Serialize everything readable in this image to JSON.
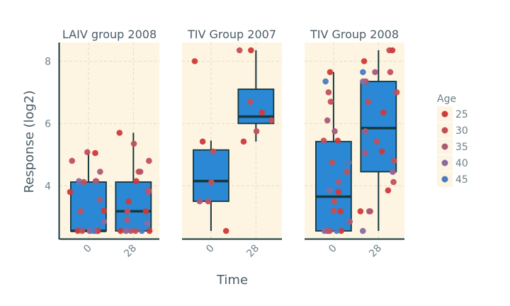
{
  "chart_data": {
    "type": "box",
    "xlabel": "Time",
    "ylabel": "Response (log2)",
    "ylim": [
      2.3,
      8.6
    ],
    "y_ticks": [
      4,
      6,
      8
    ],
    "x_categories": [
      "0",
      "28"
    ],
    "grid": true,
    "legend_position": "right",
    "colors": {
      "panel_background": "#fdf5e1",
      "box_fill": "#2a88d4",
      "box_stroke": "#15373e",
      "grid": "#e6dcc3",
      "axis": "#15373e"
    },
    "legend": {
      "title": "Age",
      "entries": [
        {
          "label": "25",
          "color": "#cf3a3a"
        },
        {
          "label": "30",
          "color": "#c24f58"
        },
        {
          "label": "35",
          "color": "#ab5a78"
        },
        {
          "label": "40",
          "color": "#8b6a9e"
        },
        {
          "label": "45",
          "color": "#4a7bc1"
        }
      ]
    },
    "panels": [
      {
        "title": "LAIV group 2008",
        "boxes": [
          {
            "x": "0",
            "min": 2.55,
            "q1": 2.55,
            "median": 2.55,
            "q3": 4.12,
            "max": 5.1
          },
          {
            "x": "28",
            "min": 2.55,
            "q1": 2.55,
            "median": 3.18,
            "q3": 4.12,
            "max": 5.7
          }
        ],
        "points": [
          {
            "x": "0",
            "y": 3.8,
            "age": "25"
          },
          {
            "x": "0",
            "y": 3.2,
            "age": "25"
          },
          {
            "x": "0",
            "y": 3.18,
            "age": "30"
          },
          {
            "x": "0",
            "y": 2.55,
            "age": "25"
          },
          {
            "x": "0",
            "y": 2.55,
            "age": "30"
          },
          {
            "x": "0",
            "y": 2.55,
            "age": "25"
          },
          {
            "x": "0",
            "y": 2.55,
            "age": "30"
          },
          {
            "x": "0",
            "y": 2.55,
            "age": "35"
          },
          {
            "x": "0",
            "y": 2.55,
            "age": "25"
          },
          {
            "x": "0",
            "y": 2.55,
            "age": "40"
          },
          {
            "x": "0",
            "y": 2.55,
            "age": "30"
          },
          {
            "x": "0",
            "y": 2.55,
            "age": "45"
          },
          {
            "x": "0",
            "y": 4.45,
            "age": "35"
          },
          {
            "x": "0",
            "y": 4.15,
            "age": "40"
          },
          {
            "x": "0",
            "y": 4.12,
            "age": "30"
          },
          {
            "x": "0",
            "y": 4.15,
            "age": "25"
          },
          {
            "x": "0",
            "y": 4.15,
            "age": "35"
          },
          {
            "x": "0",
            "y": 4.8,
            "age": "30"
          },
          {
            "x": "0",
            "y": 5.05,
            "age": "25"
          },
          {
            "x": "0",
            "y": 5.08,
            "age": "30"
          },
          {
            "x": "0",
            "y": 2.85,
            "age": "40"
          },
          {
            "x": "0",
            "y": 3.55,
            "age": "35"
          },
          {
            "x": "28",
            "y": 5.7,
            "age": "25"
          },
          {
            "x": "28",
            "y": 5.35,
            "age": "30"
          },
          {
            "x": "28",
            "y": 4.8,
            "age": "30"
          },
          {
            "x": "28",
            "y": 4.45,
            "age": "35"
          },
          {
            "x": "28",
            "y": 4.45,
            "age": "30"
          },
          {
            "x": "28",
            "y": 4.15,
            "age": "25"
          },
          {
            "x": "28",
            "y": 3.85,
            "age": "30"
          },
          {
            "x": "28",
            "y": 3.8,
            "age": "35"
          },
          {
            "x": "28",
            "y": 3.5,
            "age": "25"
          },
          {
            "x": "28",
            "y": 3.18,
            "age": "30"
          },
          {
            "x": "28",
            "y": 3.18,
            "age": "25"
          },
          {
            "x": "28",
            "y": 2.9,
            "age": "35"
          },
          {
            "x": "28",
            "y": 2.55,
            "age": "25"
          },
          {
            "x": "28",
            "y": 2.55,
            "age": "30"
          },
          {
            "x": "28",
            "y": 2.55,
            "age": "35"
          },
          {
            "x": "28",
            "y": 2.55,
            "age": "40"
          },
          {
            "x": "28",
            "y": 2.55,
            "age": "25"
          },
          {
            "x": "28",
            "y": 2.55,
            "age": "30"
          },
          {
            "x": "28",
            "y": 2.55,
            "age": "45"
          },
          {
            "x": "28",
            "y": 2.8,
            "age": "40"
          }
        ]
      },
      {
        "title": "TIV Group 2007",
        "boxes": [
          {
            "x": "0",
            "min": 2.55,
            "q1": 3.5,
            "median": 4.15,
            "q3": 5.15,
            "max": 5.45
          },
          {
            "x": "28",
            "min": 5.42,
            "q1": 6.0,
            "median": 6.22,
            "q3": 7.1,
            "max": 8.35
          }
        ],
        "points": [
          {
            "x": "0",
            "y": 8.0,
            "age": "25"
          },
          {
            "x": "0",
            "y": 5.42,
            "age": "25"
          },
          {
            "x": "0",
            "y": 5.1,
            "age": "30"
          },
          {
            "x": "0",
            "y": 4.12,
            "age": "30"
          },
          {
            "x": "0",
            "y": 3.5,
            "age": "30"
          },
          {
            "x": "0",
            "y": 3.5,
            "age": "35"
          },
          {
            "x": "0",
            "y": 2.55,
            "age": "25"
          },
          {
            "x": "28",
            "y": 8.35,
            "age": "30"
          },
          {
            "x": "28",
            "y": 8.35,
            "age": "25"
          },
          {
            "x": "28",
            "y": 6.7,
            "age": "30"
          },
          {
            "x": "28",
            "y": 6.35,
            "age": "25"
          },
          {
            "x": "28",
            "y": 6.1,
            "age": "30"
          },
          {
            "x": "28",
            "y": 5.75,
            "age": "30"
          },
          {
            "x": "28",
            "y": 5.42,
            "age": "25"
          }
        ]
      },
      {
        "title": "TIV Group 2008",
        "boxes": [
          {
            "x": "0",
            "min": 2.55,
            "q1": 2.55,
            "median": 3.65,
            "q3": 5.42,
            "max": 7.65
          },
          {
            "x": "28",
            "min": 2.55,
            "q1": 4.45,
            "median": 5.85,
            "q3": 7.35,
            "max": 8.35
          }
        ],
        "points": [
          {
            "x": "0",
            "y": 7.65,
            "age": "25"
          },
          {
            "x": "0",
            "y": 7.35,
            "age": "45"
          },
          {
            "x": "0",
            "y": 7.0,
            "age": "30"
          },
          {
            "x": "0",
            "y": 6.7,
            "age": "30"
          },
          {
            "x": "0",
            "y": 6.1,
            "age": "35"
          },
          {
            "x": "0",
            "y": 5.75,
            "age": "35"
          },
          {
            "x": "0",
            "y": 5.45,
            "age": "25"
          },
          {
            "x": "0",
            "y": 5.45,
            "age": "30"
          },
          {
            "x": "0",
            "y": 4.75,
            "age": "45"
          },
          {
            "x": "0",
            "y": 4.75,
            "age": "30"
          },
          {
            "x": "0",
            "y": 4.45,
            "age": "30"
          },
          {
            "x": "0",
            "y": 4.12,
            "age": "35"
          },
          {
            "x": "0",
            "y": 3.8,
            "age": "25"
          },
          {
            "x": "0",
            "y": 3.5,
            "age": "30"
          },
          {
            "x": "0",
            "y": 3.2,
            "age": "30"
          },
          {
            "x": "0",
            "y": 3.18,
            "age": "25"
          },
          {
            "x": "0",
            "y": 2.85,
            "age": "35"
          },
          {
            "x": "0",
            "y": 2.55,
            "age": "30"
          },
          {
            "x": "0",
            "y": 2.55,
            "age": "25"
          },
          {
            "x": "0",
            "y": 2.55,
            "age": "40"
          },
          {
            "x": "0",
            "y": 2.55,
            "age": "45"
          },
          {
            "x": "0",
            "y": 2.55,
            "age": "30"
          },
          {
            "x": "0",
            "y": 2.55,
            "age": "35"
          },
          {
            "x": "0",
            "y": 3.85,
            "age": "40"
          },
          {
            "x": "28",
            "y": 8.35,
            "age": "30"
          },
          {
            "x": "28",
            "y": 8.35,
            "age": "25"
          },
          {
            "x": "28",
            "y": 8.0,
            "age": "25"
          },
          {
            "x": "28",
            "y": 7.65,
            "age": "30"
          },
          {
            "x": "28",
            "y": 7.65,
            "age": "45"
          },
          {
            "x": "28",
            "y": 7.65,
            "age": "35"
          },
          {
            "x": "28",
            "y": 7.35,
            "age": "30"
          },
          {
            "x": "28",
            "y": 7.35,
            "age": "40"
          },
          {
            "x": "28",
            "y": 7.0,
            "age": "30"
          },
          {
            "x": "28",
            "y": 6.7,
            "age": "30"
          },
          {
            "x": "28",
            "y": 6.35,
            "age": "25"
          },
          {
            "x": "28",
            "y": 5.75,
            "age": "35"
          },
          {
            "x": "28",
            "y": 5.42,
            "age": "30"
          },
          {
            "x": "28",
            "y": 5.1,
            "age": "25"
          },
          {
            "x": "28",
            "y": 5.05,
            "age": "35"
          },
          {
            "x": "28",
            "y": 4.8,
            "age": "30"
          },
          {
            "x": "28",
            "y": 4.45,
            "age": "30"
          },
          {
            "x": "28",
            "y": 4.45,
            "age": "25"
          },
          {
            "x": "28",
            "y": 4.45,
            "age": "40"
          },
          {
            "x": "28",
            "y": 4.12,
            "age": "30"
          },
          {
            "x": "28",
            "y": 3.85,
            "age": "25"
          },
          {
            "x": "28",
            "y": 3.18,
            "age": "30"
          },
          {
            "x": "28",
            "y": 3.18,
            "age": "25"
          },
          {
            "x": "28",
            "y": 3.18,
            "age": "35"
          },
          {
            "x": "28",
            "y": 2.55,
            "age": "40"
          }
        ]
      }
    ]
  }
}
